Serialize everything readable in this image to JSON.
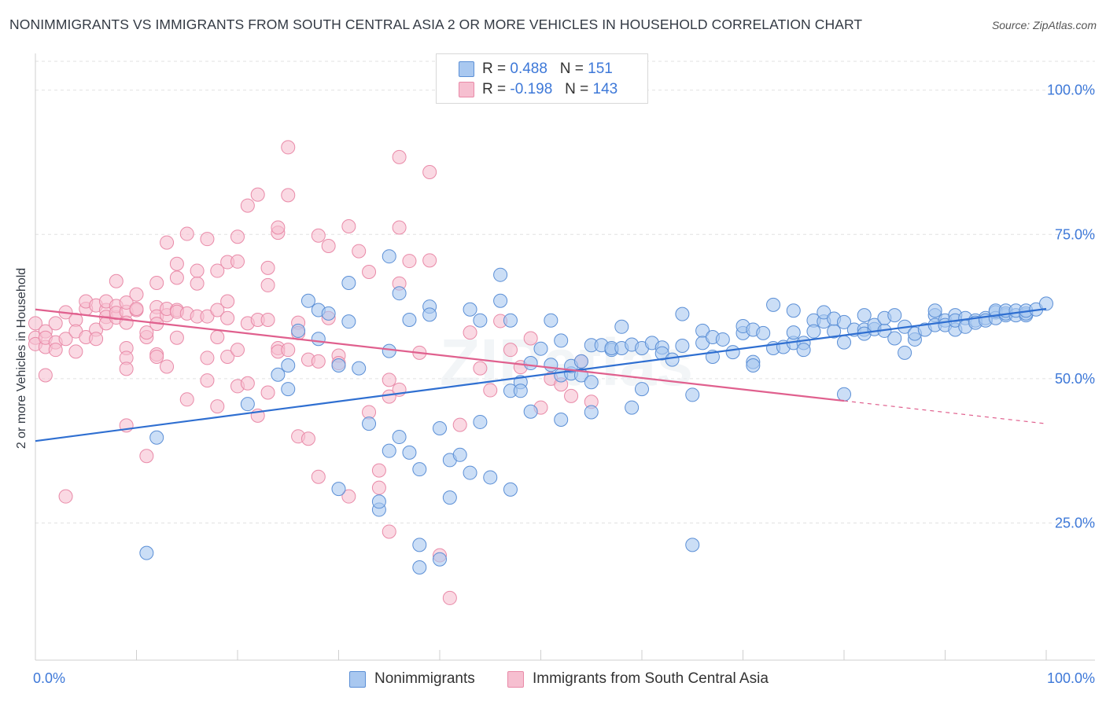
{
  "title": "NONIMMIGRANTS VS IMMIGRANTS FROM SOUTH CENTRAL ASIA 2 OR MORE VEHICLES IN HOUSEHOLD CORRELATION CHART",
  "source": "Source: ZipAtlas.com",
  "watermark": "ZIPatlas",
  "legend": {
    "rows": [
      {
        "r_label": "R =",
        "r_value": "0.488",
        "n_label": "N =",
        "n_value": "151"
      },
      {
        "r_label": "R =",
        "r_value": "-0.198",
        "n_label": "N =",
        "n_value": "143"
      }
    ]
  },
  "bottom_legend": [
    "Nonimmigrants",
    "Immigrants from South Central Asia"
  ],
  "colors": {
    "blue_fill": "#a9c8f0",
    "blue_stroke": "#5b8fd6",
    "blue_line": "#2f6fd1",
    "pink_fill": "#f6bfd0",
    "pink_stroke": "#e98aa8",
    "pink_line": "#e0608e",
    "tick_label": "#3d78d8",
    "grid": "#e2e2e2"
  },
  "chart_data": {
    "type": "scatter",
    "title": "NONIMMIGRANTS VS IMMIGRANTS FROM SOUTH CENTRAL ASIA 2 OR MORE VEHICLES IN HOUSEHOLD CORRELATION CHART",
    "xlabel": "",
    "ylabel": "2 or more Vehicles in Household",
    "xlim": [
      0,
      100
    ],
    "ylim": [
      3,
      105
    ],
    "x_tick_labels": [
      "0.0%",
      "100.0%"
    ],
    "y_ticks": [
      25,
      50,
      75,
      100
    ],
    "y_tick_labels": [
      "25.0%",
      "50.0%",
      "75.0%",
      "100.0%"
    ],
    "grid": true,
    "legend_position": "top-center",
    "series": [
      {
        "name": "Nonimmigrants",
        "color": "#a9c8f0",
        "trend": {
          "x": [
            0,
            100
          ],
          "y": [
            39.2,
            62.1
          ],
          "dashed_from": null
        },
        "points": [
          [
            11,
            19.8
          ],
          [
            12,
            39.8
          ],
          [
            21,
            45.6
          ],
          [
            24,
            50.7
          ],
          [
            25,
            48.2
          ],
          [
            25,
            52.3
          ],
          [
            26,
            58.3
          ],
          [
            27,
            63.5
          ],
          [
            28,
            61.9
          ],
          [
            28,
            56.9
          ],
          [
            29,
            61.3
          ],
          [
            30,
            30.9
          ],
          [
            30,
            52.3
          ],
          [
            31,
            66.6
          ],
          [
            31,
            59.9
          ],
          [
            32,
            51.8
          ],
          [
            33,
            42.2
          ],
          [
            34,
            27.3
          ],
          [
            34,
            28.7
          ],
          [
            35,
            37.5
          ],
          [
            35,
            54.8
          ],
          [
            35,
            71.2
          ],
          [
            36,
            39.9
          ],
          [
            36,
            64.8
          ],
          [
            37,
            37.2
          ],
          [
            37,
            60.2
          ],
          [
            38,
            34.3
          ],
          [
            38,
            21.2
          ],
          [
            38,
            17.3
          ],
          [
            39,
            62.5
          ],
          [
            39,
            61.1
          ],
          [
            40,
            41.4
          ],
          [
            40,
            18.7
          ],
          [
            41,
            29.4
          ],
          [
            41,
            35.9
          ],
          [
            42,
            36.8
          ],
          [
            43,
            33.7
          ],
          [
            43,
            62.0
          ],
          [
            44,
            60.1
          ],
          [
            44,
            42.5
          ],
          [
            45,
            32.9
          ],
          [
            46,
            63.5
          ],
          [
            46,
            68.0
          ],
          [
            47,
            30.8
          ],
          [
            47,
            60.1
          ],
          [
            47,
            47.9
          ],
          [
            48,
            49.4
          ],
          [
            48,
            47.9
          ],
          [
            49,
            52.7
          ],
          [
            49,
            44.3
          ],
          [
            50,
            55.2
          ],
          [
            51,
            52.4
          ],
          [
            51,
            60.1
          ],
          [
            52,
            50.6
          ],
          [
            52,
            56.6
          ],
          [
            52,
            42.9
          ],
          [
            53,
            50.9
          ],
          [
            53,
            52.2
          ],
          [
            54,
            50.6
          ],
          [
            54,
            53.0
          ],
          [
            55,
            44.2
          ],
          [
            55,
            49.4
          ],
          [
            55,
            55.8
          ],
          [
            56,
            55.8
          ],
          [
            57,
            55.0
          ],
          [
            57,
            55.3
          ],
          [
            58,
            59.0
          ],
          [
            58,
            55.3
          ],
          [
            59,
            55.9
          ],
          [
            59,
            45.0
          ],
          [
            60,
            48.2
          ],
          [
            60,
            55.3
          ],
          [
            61,
            56.2
          ],
          [
            62,
            55.4
          ],
          [
            62,
            54.4
          ],
          [
            63,
            53.3
          ],
          [
            64,
            61.2
          ],
          [
            64,
            55.7
          ],
          [
            65,
            21.2
          ],
          [
            65,
            47.2
          ],
          [
            66,
            58.3
          ],
          [
            66,
            56.2
          ],
          [
            67,
            57.2
          ],
          [
            67,
            53.8
          ],
          [
            68,
            56.8
          ],
          [
            69,
            54.6
          ],
          [
            70,
            57.9
          ],
          [
            70,
            59.1
          ],
          [
            71,
            58.5
          ],
          [
            71,
            52.9
          ],
          [
            71,
            52.3
          ],
          [
            72,
            57.9
          ],
          [
            73,
            62.8
          ],
          [
            73,
            55.3
          ],
          [
            74,
            55.5
          ],
          [
            75,
            56.2
          ],
          [
            75,
            61.8
          ],
          [
            75,
            58.0
          ],
          [
            76,
            56.2
          ],
          [
            76,
            55.0
          ],
          [
            77,
            60.1
          ],
          [
            77,
            58.2
          ],
          [
            78,
            59.9
          ],
          [
            78,
            61.5
          ],
          [
            79,
            58.2
          ],
          [
            79,
            60.4
          ],
          [
            80,
            59.8
          ],
          [
            80,
            47.3
          ],
          [
            80,
            56.3
          ],
          [
            81,
            58.5
          ],
          [
            82,
            61.0
          ],
          [
            82,
            58.5
          ],
          [
            82,
            57.8
          ],
          [
            83,
            58.6
          ],
          [
            83,
            59.3
          ],
          [
            84,
            58.3
          ],
          [
            84,
            60.5
          ],
          [
            85,
            61.0
          ],
          [
            85,
            57.0
          ],
          [
            86,
            59.0
          ],
          [
            86,
            54.5
          ],
          [
            87,
            56.8
          ],
          [
            87,
            57.8
          ],
          [
            88,
            58.5
          ],
          [
            89,
            61.0
          ],
          [
            89,
            61.8
          ],
          [
            89,
            59.3
          ],
          [
            90,
            60.1
          ],
          [
            90,
            59.3
          ],
          [
            91,
            61.0
          ],
          [
            91,
            58.5
          ],
          [
            91,
            60.1
          ],
          [
            92,
            60.5
          ],
          [
            92,
            59.0
          ],
          [
            93,
            60.1
          ],
          [
            93,
            59.7
          ],
          [
            94,
            60.5
          ],
          [
            94,
            60.1
          ],
          [
            95,
            61.5
          ],
          [
            95,
            60.5
          ],
          [
            95,
            61.8
          ],
          [
            96,
            61.0
          ],
          [
            96,
            61.3
          ],
          [
            96,
            61.8
          ],
          [
            97,
            61.0
          ],
          [
            97,
            61.8
          ],
          [
            98,
            61.0
          ],
          [
            98,
            61.3
          ],
          [
            98,
            61.8
          ],
          [
            99,
            62.0
          ],
          [
            100,
            63.0
          ]
        ]
      },
      {
        "name": "Immigrants from South Central Asia",
        "color": "#f6bfd0",
        "trend": {
          "x": [
            0,
            100
          ],
          "y": [
            62.0,
            42.2
          ],
          "dashed_from": 80
        },
        "points": [
          [
            0,
            57.1
          ],
          [
            0,
            59.6
          ],
          [
            0,
            56.0
          ],
          [
            1,
            55.5
          ],
          [
            1,
            58.2
          ],
          [
            1,
            50.6
          ],
          [
            1,
            57.1
          ],
          [
            2,
            59.6
          ],
          [
            2,
            56.3
          ],
          [
            2,
            55.0
          ],
          [
            3,
            56.9
          ],
          [
            3,
            29.6
          ],
          [
            3,
            61.5
          ],
          [
            4,
            60.2
          ],
          [
            4,
            54.7
          ],
          [
            4,
            58.2
          ],
          [
            5,
            62.1
          ],
          [
            5,
            63.4
          ],
          [
            5,
            57.2
          ],
          [
            6,
            62.7
          ],
          [
            6,
            58.5
          ],
          [
            6,
            56.9
          ],
          [
            7,
            61.9
          ],
          [
            7,
            60.7
          ],
          [
            7,
            59.6
          ],
          [
            7,
            63.4
          ],
          [
            8,
            60.6
          ],
          [
            8,
            62.6
          ],
          [
            8,
            66.9
          ],
          [
            8,
            61.4
          ],
          [
            9,
            61.6
          ],
          [
            9,
            63.2
          ],
          [
            9,
            59.7
          ],
          [
            9,
            55.3
          ],
          [
            9,
            53.6
          ],
          [
            9,
            51.7
          ],
          [
            9,
            41.9
          ],
          [
            10,
            64.6
          ],
          [
            10,
            61.9
          ],
          [
            10,
            62.1
          ],
          [
            11,
            57.2
          ],
          [
            11,
            58.0
          ],
          [
            11,
            36.6
          ],
          [
            12,
            66.6
          ],
          [
            12,
            62.4
          ],
          [
            12,
            60.8
          ],
          [
            12,
            59.5
          ],
          [
            12,
            54.2
          ],
          [
            12,
            53.8
          ],
          [
            13,
            61.0
          ],
          [
            13,
            73.6
          ],
          [
            13,
            52.1
          ],
          [
            13,
            62.1
          ],
          [
            14,
            67.5
          ],
          [
            14,
            61.9
          ],
          [
            14,
            69.9
          ],
          [
            14,
            61.6
          ],
          [
            14,
            57.1
          ],
          [
            15,
            75.1
          ],
          [
            15,
            61.3
          ],
          [
            15,
            46.4
          ],
          [
            16,
            66.5
          ],
          [
            16,
            68.7
          ],
          [
            16,
            60.8
          ],
          [
            17,
            74.2
          ],
          [
            17,
            60.8
          ],
          [
            17,
            53.6
          ],
          [
            17,
            49.7
          ],
          [
            18,
            68.7
          ],
          [
            18,
            57.2
          ],
          [
            18,
            45.2
          ],
          [
            18,
            61.9
          ],
          [
            19,
            63.4
          ],
          [
            19,
            53.8
          ],
          [
            19,
            70.2
          ],
          [
            19,
            60.5
          ],
          [
            20,
            74.6
          ],
          [
            20,
            70.3
          ],
          [
            20,
            48.7
          ],
          [
            20,
            55.0
          ],
          [
            21,
            80.0
          ],
          [
            21,
            59.6
          ],
          [
            21,
            49.2
          ],
          [
            22,
            81.9
          ],
          [
            22,
            60.2
          ],
          [
            22,
            43.6
          ],
          [
            23,
            66.2
          ],
          [
            23,
            60.2
          ],
          [
            23,
            47.6
          ],
          [
            23,
            69.2
          ],
          [
            24,
            75.3
          ],
          [
            24,
            55.3
          ],
          [
            24,
            54.7
          ],
          [
            24,
            76.2
          ],
          [
            25,
            90.1
          ],
          [
            25,
            81.8
          ],
          [
            25,
            55.0
          ],
          [
            26,
            59.7
          ],
          [
            26,
            40.0
          ],
          [
            26,
            57.9
          ],
          [
            27,
            39.6
          ],
          [
            27,
            53.3
          ],
          [
            28,
            74.8
          ],
          [
            28,
            33.0
          ],
          [
            28,
            53.0
          ],
          [
            29,
            73.0
          ],
          [
            29,
            60.5
          ],
          [
            30,
            54.0
          ],
          [
            30,
            52.7
          ],
          [
            31,
            76.4
          ],
          [
            31,
            29.6
          ],
          [
            32,
            72.1
          ],
          [
            33,
            68.5
          ],
          [
            33,
            44.2
          ],
          [
            34,
            34.1
          ],
          [
            34,
            31.1
          ],
          [
            35,
            49.8
          ],
          [
            35,
            46.9
          ],
          [
            35,
            23.5
          ],
          [
            36,
            88.4
          ],
          [
            36,
            76.2
          ],
          [
            36,
            48.1
          ],
          [
            36,
            66.5
          ],
          [
            37,
            70.4
          ],
          [
            38,
            54.5
          ],
          [
            39,
            70.5
          ],
          [
            39,
            85.8
          ],
          [
            40,
            19.4
          ],
          [
            41,
            12.0
          ],
          [
            42,
            42.0
          ],
          [
            43,
            58.0
          ],
          [
            44,
            51.8
          ],
          [
            45,
            48.0
          ],
          [
            46,
            60.0
          ],
          [
            47,
            55.0
          ],
          [
            48,
            52.0
          ],
          [
            49,
            57.0
          ],
          [
            50,
            45.0
          ],
          [
            51,
            50.0
          ],
          [
            52,
            49.0
          ],
          [
            53,
            47.0
          ],
          [
            54,
            53.0
          ],
          [
            55,
            46.0
          ]
        ]
      }
    ]
  }
}
